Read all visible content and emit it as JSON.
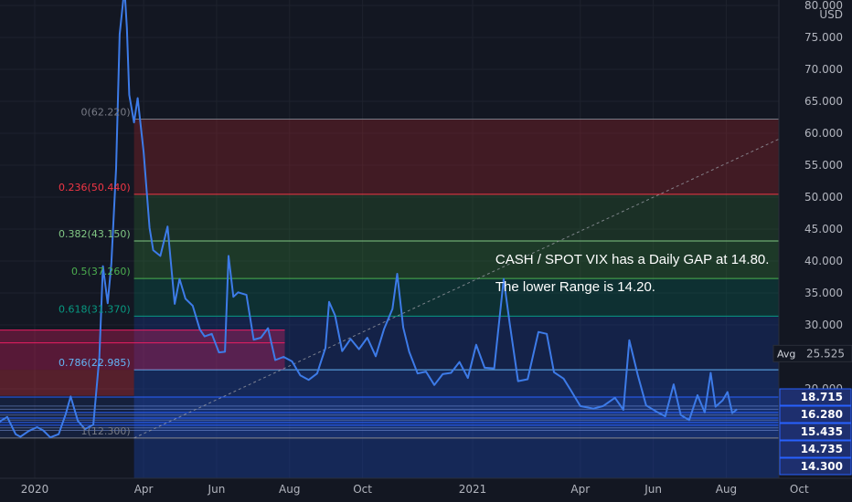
{
  "chart_data": {
    "type": "line",
    "title": "",
    "currency": "USD",
    "ylim": [
      12,
      80
    ],
    "y_ticks": [
      "80.000",
      "75.000",
      "70.000",
      "65.000",
      "60.000",
      "55.000",
      "50.000",
      "45.000",
      "40.000",
      "35.000",
      "30.000",
      "20.000"
    ],
    "x_ticks": [
      "2020",
      "Apr",
      "Jun",
      "Aug",
      "Oct",
      "2021",
      "Apr",
      "Jun",
      "Aug",
      "Oct"
    ],
    "x_tick_dates": [
      "2020-01-01",
      "2020-04-01",
      "2020-06-01",
      "2020-08-01",
      "2020-10-01",
      "2021-01-01",
      "2021-04-01",
      "2021-06-01",
      "2021-08-01",
      "2021-10-01"
    ],
    "xlim": [
      "2019-11-01",
      "2021-10-20"
    ],
    "series": [
      {
        "color": "#3d7be8",
        "points": [
          [
            "2019-11-04",
            13.1
          ],
          [
            "2019-11-12",
            12.7
          ],
          [
            "2019-11-20",
            12.8
          ],
          [
            "2019-11-26",
            12.3
          ],
          [
            "2019-12-03",
            14.9
          ],
          [
            "2019-12-09",
            15.6
          ],
          [
            "2019-12-16",
            12.9
          ],
          [
            "2019-12-20",
            12.5
          ],
          [
            "2019-12-27",
            13.4
          ],
          [
            "2020-01-03",
            14.0
          ],
          [
            "2020-01-08",
            13.5
          ],
          [
            "2020-01-14",
            12.4
          ],
          [
            "2020-01-21",
            12.9
          ],
          [
            "2020-01-27",
            16.1
          ],
          [
            "2020-01-31",
            18.8
          ],
          [
            "2020-02-06",
            15.0
          ],
          [
            "2020-02-12",
            13.7
          ],
          [
            "2020-02-19",
            14.4
          ],
          [
            "2020-02-24",
            25.0
          ],
          [
            "2020-02-27",
            39.2
          ],
          [
            "2020-03-02",
            33.4
          ],
          [
            "2020-03-05",
            39.6
          ],
          [
            "2020-03-09",
            54.5
          ],
          [
            "2020-03-12",
            75.5
          ],
          [
            "2020-03-16",
            82.7
          ],
          [
            "2020-03-18",
            76.5
          ],
          [
            "2020-03-20",
            66.0
          ],
          [
            "2020-03-24",
            61.7
          ],
          [
            "2020-03-27",
            65.5
          ],
          [
            "2020-04-01",
            57.1
          ],
          [
            "2020-04-06",
            45.2
          ],
          [
            "2020-04-09",
            41.7
          ],
          [
            "2020-04-15",
            40.8
          ],
          [
            "2020-04-21",
            45.4
          ],
          [
            "2020-04-27",
            33.3
          ],
          [
            "2020-05-01",
            37.2
          ],
          [
            "2020-05-06",
            34.1
          ],
          [
            "2020-05-12",
            33.0
          ],
          [
            "2020-05-18",
            29.3
          ],
          [
            "2020-05-22",
            28.2
          ],
          [
            "2020-05-28",
            28.6
          ],
          [
            "2020-06-03",
            25.7
          ],
          [
            "2020-06-08",
            25.8
          ],
          [
            "2020-06-11",
            40.8
          ],
          [
            "2020-06-15",
            34.4
          ],
          [
            "2020-06-19",
            35.1
          ],
          [
            "2020-06-26",
            34.7
          ],
          [
            "2020-07-02",
            27.7
          ],
          [
            "2020-07-08",
            28.0
          ],
          [
            "2020-07-14",
            29.5
          ],
          [
            "2020-07-20",
            24.5
          ],
          [
            "2020-07-27",
            25.0
          ],
          [
            "2020-08-03",
            24.3
          ],
          [
            "2020-08-10",
            22.1
          ],
          [
            "2020-08-17",
            21.4
          ],
          [
            "2020-08-24",
            22.4
          ],
          [
            "2020-08-31",
            26.4
          ],
          [
            "2020-09-03",
            33.6
          ],
          [
            "2020-09-08",
            31.5
          ],
          [
            "2020-09-14",
            25.9
          ],
          [
            "2020-09-21",
            27.8
          ],
          [
            "2020-09-28",
            26.2
          ],
          [
            "2020-10-05",
            28.0
          ],
          [
            "2020-10-12",
            25.1
          ],
          [
            "2020-10-19",
            29.4
          ],
          [
            "2020-10-26",
            32.5
          ],
          [
            "2020-10-30",
            38.0
          ],
          [
            "2020-11-04",
            29.6
          ],
          [
            "2020-11-09",
            25.8
          ],
          [
            "2020-11-16",
            22.4
          ],
          [
            "2020-11-23",
            22.7
          ],
          [
            "2020-11-30",
            20.6
          ],
          [
            "2020-12-07",
            22.3
          ],
          [
            "2020-12-14",
            22.5
          ],
          [
            "2020-12-21",
            24.2
          ],
          [
            "2020-12-28",
            21.7
          ],
          [
            "2021-01-04",
            26.9
          ],
          [
            "2021-01-11",
            23.3
          ],
          [
            "2021-01-19",
            23.2
          ],
          [
            "2021-01-27",
            37.2
          ],
          [
            "2021-02-01",
            30.2
          ],
          [
            "2021-02-08",
            21.2
          ],
          [
            "2021-02-16",
            21.5
          ],
          [
            "2021-02-25",
            28.9
          ],
          [
            "2021-03-04",
            28.6
          ],
          [
            "2021-03-10",
            22.6
          ],
          [
            "2021-03-18",
            21.6
          ],
          [
            "2021-03-24",
            19.8
          ],
          [
            "2021-04-01",
            17.3
          ],
          [
            "2021-04-12",
            16.9
          ],
          [
            "2021-04-20",
            17.3
          ],
          [
            "2021-04-30",
            18.6
          ],
          [
            "2021-05-07",
            16.7
          ],
          [
            "2021-05-12",
            27.6
          ],
          [
            "2021-05-19",
            22.2
          ],
          [
            "2021-05-26",
            17.4
          ],
          [
            "2021-06-04",
            16.4
          ],
          [
            "2021-06-11",
            15.7
          ],
          [
            "2021-06-18",
            20.7
          ],
          [
            "2021-06-24",
            15.9
          ],
          [
            "2021-07-01",
            15.1
          ],
          [
            "2021-07-08",
            19.0
          ],
          [
            "2021-07-14",
            16.3
          ],
          [
            "2021-07-19",
            22.5
          ],
          [
            "2021-07-23",
            17.2
          ],
          [
            "2021-07-29",
            18.2
          ],
          [
            "2021-08-02",
            19.5
          ],
          [
            "2021-08-06",
            16.2
          ],
          [
            "2021-08-10",
            16.8
          ]
        ]
      }
    ],
    "fibonacci": [
      {
        "label": "0(62.220)",
        "value": 62.22,
        "color": "#787b86",
        "fill": "rgba(242,54,69,0.25)"
      },
      {
        "label": "0.236(50.440)",
        "value": 50.44,
        "color": "#f23645",
        "fill": "rgba(76,175,80,0.22)"
      },
      {
        "label": "0.382(43.150)",
        "value": 43.15,
        "color": "#81c784",
        "fill": "rgba(76,175,80,0.28)"
      },
      {
        "label": "0.5(37.260)",
        "value": 37.26,
        "color": "#4caf50",
        "fill": "rgba(8,153,129,0.25)"
      },
      {
        "label": "0.618(31.370)",
        "value": 31.37,
        "color": "#089981",
        "fill": "rgba(41,98,255,0.22)"
      },
      {
        "label": "0.786(22.985)",
        "value": 22.985,
        "color": "#64b5f6",
        "fill": "rgba(41,98,255,0.3)"
      },
      {
        "label": "1(12.300)",
        "value": 12.3,
        "color": "#787b86"
      }
    ],
    "fib_x_range": [
      "2020-03-24",
      "2021-10-20"
    ],
    "trend_line": {
      "from": [
        "2020-03-24",
        12.3
      ],
      "to": [
        "2021-10-20",
        62.22
      ],
      "color": "#9598a1"
    },
    "horizontal_levels": [
      {
        "value": 18.715,
        "color": "#2962ff"
      },
      {
        "value": 16.28,
        "color": "#2962ff"
      },
      {
        "value": 15.435,
        "color": "#2962ff"
      },
      {
        "value": 14.735,
        "color": "#2962ff"
      },
      {
        "value": 14.3,
        "color": "#2962ff"
      },
      {
        "value": 12.3,
        "color": "#787b86"
      }
    ],
    "price_labels": [
      {
        "text": "18.715",
        "value": 18.715
      },
      {
        "text": "16.280",
        "value": 16.28
      },
      {
        "text": "15.435",
        "value": 15.435
      },
      {
        "text": "14.735",
        "value": 14.735
      },
      {
        "text": "14.300",
        "value": 14.3
      }
    ],
    "avg_label": {
      "name": "Avg",
      "text": "25.525",
      "value": 25.525
    },
    "gap_zone": {
      "x_from": "2019-11-01",
      "x_to": "2020-07-28",
      "y_from": 22.985,
      "y_to": 29.2,
      "color": "rgba(233,30,99,0.32)"
    },
    "annotations": [
      {
        "text": "CASH / SPOT VIX has a Daily GAP at 14.80.",
        "x": "2021-01-20",
        "y": 39.6
      },
      {
        "text": "The lower Range is 14.20.",
        "x": "2021-01-20",
        "y": 35.3
      }
    ]
  }
}
